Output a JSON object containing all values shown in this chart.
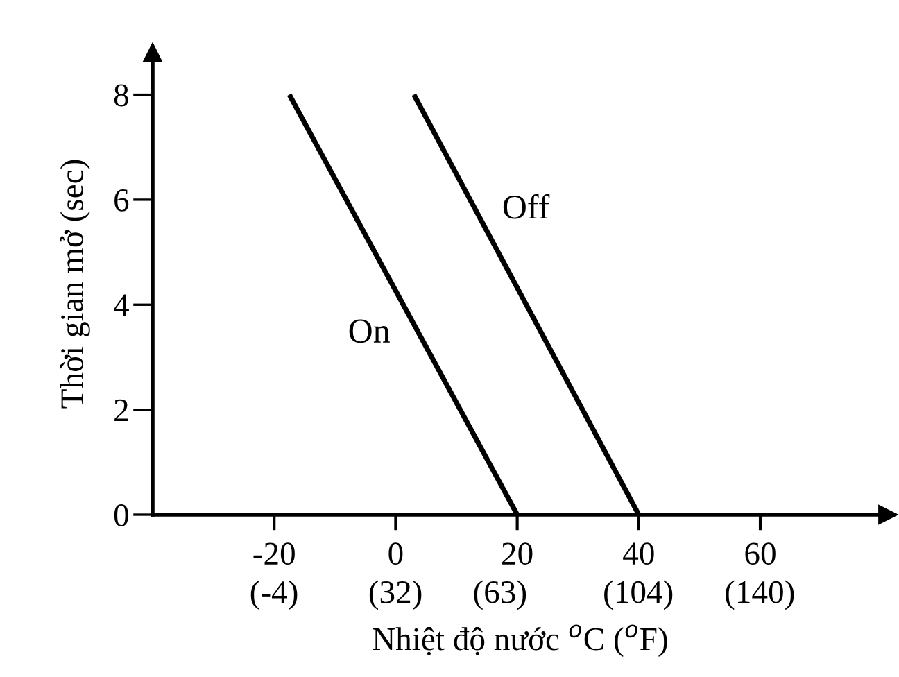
{
  "chart_data": {
    "type": "line",
    "xlabel": "Nhiệt độ nước $^{o}$C ($^{o}$F)",
    "ylabel": "Thời gian mở (sec)",
    "series": [
      {
        "name": "On",
        "color": "#000000",
        "x": [
          -17.5,
          20
        ],
        "values": [
          8,
          0
        ]
      },
      {
        "name": "Off",
        "color": "#000000",
        "x": [
          3,
          40
        ],
        "values": [
          8,
          0
        ]
      }
    ],
    "xlim": [
      -40,
      81
    ],
    "ylim": [
      0,
      8.8
    ],
    "xticks": [
      -20,
      0,
      20,
      40,
      60
    ],
    "x2lim": [
      -40,
      178
    ],
    "x2ticks": [
      {
        "value": -4,
        "label": "(-4)"
      },
      {
        "value": 32,
        "label": "(32)"
      },
      {
        "value": 63,
        "label": "(63)"
      },
      {
        "value": 104,
        "label": "(104)"
      },
      {
        "value": 140,
        "label": "(140)"
      }
    ],
    "yticks": [
      0,
      2,
      4,
      6,
      8
    ],
    "grid": false,
    "legend": false,
    "marker": "none",
    "line_style": "solid"
  }
}
